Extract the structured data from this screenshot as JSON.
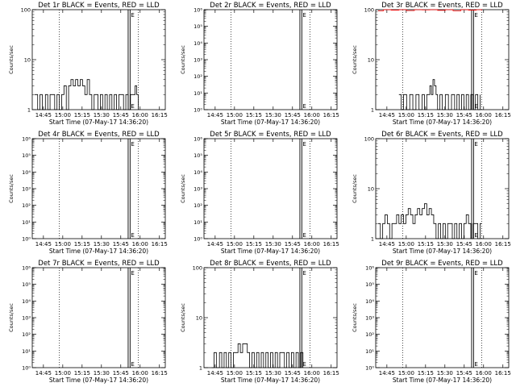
{
  "chart_data": [
    {
      "type": "line",
      "title": "Det 1r BLACK = Events, RED = LLD",
      "xlabel": "Start Time (07-May-17 14:36:20)",
      "ylabel": "Counts/sec",
      "yscale": "log",
      "ylim": [
        1,
        100
      ],
      "yticks": [
        "1",
        "10",
        "100"
      ],
      "xticks": [
        "14:45",
        "15:00",
        "15:15",
        "15:30",
        "15:45",
        "16:00",
        "16:15"
      ],
      "series": [
        {
          "color": "#000000",
          "style": "step",
          "x": [
            0.03,
            0.07,
            0.1,
            0.13,
            0.17,
            0.2,
            0.23,
            0.26,
            0.29,
            0.32,
            0.35,
            0.38,
            0.41,
            0.44,
            0.47,
            0.5,
            0.53,
            0.56,
            0.59,
            0.62,
            0.65,
            0.68,
            0.71,
            0.74,
            0.77,
            0.8,
            0.82,
            0.85,
            0.88,
            0.91,
            0.94,
            0.97,
            1.0,
            1.03,
            1.06,
            1.09,
            1.12,
            1.15,
            1.18,
            1.21,
            1.24,
            1.27,
            1.3,
            1.33,
            1.35,
            1.37
          ],
          "y": [
            2,
            1,
            2,
            1,
            2,
            1,
            2,
            2,
            1,
            2,
            1,
            2,
            3,
            1,
            3,
            4,
            3,
            4,
            3,
            4,
            3,
            2,
            4,
            2,
            1,
            2,
            2,
            1,
            2,
            1,
            2,
            1,
            2,
            1,
            2,
            1,
            2,
            2,
            1,
            2,
            1,
            2,
            2,
            3,
            2,
            1
          ]
        }
      ]
    },
    {
      "type": "line",
      "title": "Det 2r BLACK = Events, RED = LLD",
      "xlabel": "Start Time (07-May-17 14:36:20)",
      "ylabel": "Counts/sec",
      "yscale": "log",
      "ylim": [
        1,
        1000000.0
      ],
      "yticks": [
        "10⁰",
        "10¹",
        "10²",
        "10³",
        "10⁴",
        "10⁵",
        "10⁶"
      ],
      "xticks": [
        "14:45",
        "15:00",
        "15:15",
        "15:30",
        "15:45",
        "16:00",
        "16:15"
      ],
      "series": []
    },
    {
      "type": "line",
      "title": "Det 3r BLACK = Events, RED = LLD",
      "xlabel": "Start Time (07-May-17 14:36:20)",
      "ylabel": "Counts/sec",
      "yscale": "log",
      "ylim": [
        1,
        100
      ],
      "yticks": [
        "1",
        "10",
        "100"
      ],
      "xticks": [
        "14:45",
        "15:00",
        "15:15",
        "15:30",
        "15:45",
        "16:00",
        "16:15"
      ],
      "series": [
        {
          "color": "#000000",
          "style": "step",
          "x": [
            0.3,
            0.33,
            0.36,
            0.4,
            0.44,
            0.48,
            0.52,
            0.56,
            0.6,
            0.63,
            0.66,
            0.7,
            0.72,
            0.74,
            0.76,
            0.78,
            0.8,
            0.83,
            0.86,
            0.9,
            0.94,
            0.98,
            1.02,
            1.05,
            1.08,
            1.11,
            1.14,
            1.17,
            1.2,
            1.23,
            1.26,
            1.29,
            1.32,
            1.35
          ],
          "y": [
            2,
            1,
            2,
            1,
            2,
            1,
            2,
            1,
            2,
            1,
            2,
            3,
            2,
            4,
            3,
            2,
            1,
            2,
            1,
            2,
            1,
            2,
            1,
            2,
            1,
            2,
            1,
            2,
            1,
            2,
            1,
            2,
            1,
            2
          ]
        },
        {
          "color": "#ff0000",
          "style": "step",
          "x": [
            0.03,
            0.1,
            0.2,
            0.3,
            0.4,
            0.5,
            0.6,
            0.7,
            0.8,
            0.9,
            1.0,
            1.1,
            1.2,
            1.3,
            1.37
          ],
          "y": [
            95,
            100,
            98,
            100,
            96,
            100,
            99,
            100,
            97,
            100,
            95,
            100,
            98,
            100,
            97
          ]
        }
      ]
    },
    {
      "type": "line",
      "title": "Det 4r BLACK = Events, RED = LLD",
      "xlabel": "Start Time (07-May-17 14:36:20)",
      "ylabel": "Counts/sec",
      "yscale": "log",
      "ylim": [
        1,
        1000000.0
      ],
      "yticks": [
        "10⁰",
        "10¹",
        "10²",
        "10³",
        "10⁴",
        "10⁵",
        "10⁶"
      ],
      "xticks": [
        "14:45",
        "15:00",
        "15:15",
        "15:30",
        "15:45",
        "16:00",
        "16:15"
      ],
      "series": []
    },
    {
      "type": "line",
      "title": "Det 5r BLACK = Events, RED = LLD",
      "xlabel": "Start Time (07-May-17 14:36:20)",
      "ylabel": "Counts/sec",
      "yscale": "log",
      "ylim": [
        1,
        1000000.0
      ],
      "yticks": [
        "10⁰",
        "10¹",
        "10²",
        "10³",
        "10⁴",
        "10⁵",
        "10⁶"
      ],
      "xticks": [
        "14:45",
        "15:00",
        "15:15",
        "15:30",
        "15:45",
        "16:00",
        "16:15"
      ],
      "series": []
    },
    {
      "type": "line",
      "title": "Det 6r BLACK = Events, RED = LLD",
      "xlabel": "Start Time (07-May-17 14:36:20)",
      "ylabel": "Counts/sec",
      "yscale": "log",
      "ylim": [
        1,
        100
      ],
      "yticks": [
        "1",
        "10",
        "100"
      ],
      "xticks": [
        "14:45",
        "15:00",
        "15:15",
        "15:30",
        "15:45",
        "16:00",
        "16:15"
      ],
      "series": [
        {
          "color": "#000000",
          "style": "step",
          "x": [
            0.03,
            0.06,
            0.09,
            0.12,
            0.15,
            0.18,
            0.21,
            0.24,
            0.27,
            0.3,
            0.33,
            0.36,
            0.39,
            0.42,
            0.45,
            0.48,
            0.51,
            0.54,
            0.57,
            0.6,
            0.63,
            0.66,
            0.69,
            0.72,
            0.75,
            0.78,
            0.81,
            0.84,
            0.87,
            0.9,
            0.93,
            0.96,
            0.99,
            1.02,
            1.05,
            1.08,
            1.11,
            1.14,
            1.17,
            1.2,
            1.23,
            1.26,
            1.29,
            1.32,
            1.35,
            1.37
          ],
          "y": [
            2,
            1,
            2,
            3,
            2,
            1,
            2,
            2,
            3,
            2,
            3,
            2,
            3,
            4,
            3,
            2,
            3,
            4,
            3,
            4,
            5,
            3,
            4,
            3,
            2,
            1,
            2,
            1,
            2,
            1,
            2,
            2,
            1,
            2,
            1,
            2,
            1,
            2,
            3,
            2,
            1,
            2,
            2,
            1,
            2,
            2
          ]
        }
      ]
    },
    {
      "type": "line",
      "title": "Det 7r BLACK = Events, RED = LLD",
      "xlabel": "Start Time (07-May-17 14:36:20)",
      "ylabel": "Counts/sec",
      "yscale": "log",
      "ylim": [
        1,
        1000000.0
      ],
      "yticks": [
        "10⁰",
        "10¹",
        "10²",
        "10³",
        "10⁴",
        "10⁵",
        "10⁶"
      ],
      "xticks": [
        "14:45",
        "15:00",
        "15:15",
        "15:30",
        "15:45",
        "16:00",
        "16:15"
      ],
      "series": []
    },
    {
      "type": "line",
      "title": "Det 8r BLACK = Events, RED = LLD",
      "xlabel": "Start Time (07-May-17 14:36:20)",
      "ylabel": "Counts/sec",
      "yscale": "log",
      "ylim": [
        1,
        100
      ],
      "yticks": [
        "1",
        "10",
        "100"
      ],
      "xticks": [
        "14:45",
        "15:00",
        "15:15",
        "15:30",
        "15:45",
        "16:00",
        "16:15"
      ],
      "series": [
        {
          "color": "#000000",
          "style": "step",
          "x": [
            0.1,
            0.13,
            0.16,
            0.2,
            0.23,
            0.26,
            0.29,
            0.32,
            0.35,
            0.38,
            0.41,
            0.44,
            0.47,
            0.5,
            0.53,
            0.56,
            0.59,
            0.62,
            0.65,
            0.68,
            0.71,
            0.74,
            0.77,
            0.8,
            0.83,
            0.86,
            0.89,
            0.92,
            0.95,
            0.98,
            1.01,
            1.04,
            1.07,
            1.1,
            1.13,
            1.16,
            1.19,
            1.22,
            1.25,
            1.28
          ],
          "y": [
            1,
            2,
            1,
            2,
            1,
            2,
            1,
            2,
            1,
            2,
            2,
            3,
            2,
            3,
            3,
            2,
            1,
            2,
            1,
            2,
            1,
            2,
            1,
            2,
            1,
            2,
            1,
            2,
            1,
            2,
            2,
            1,
            2,
            1,
            2,
            1,
            2,
            1,
            2,
            1
          ]
        }
      ]
    },
    {
      "type": "line",
      "title": "Det 9r BLACK = Events, RED = LLD",
      "xlabel": "Start Time (07-May-17 14:36:20)",
      "ylabel": "Counts/sec",
      "yscale": "log",
      "ylim": [
        1,
        1000000.0
      ],
      "yticks": [
        "10⁰",
        "10¹",
        "10²",
        "10³",
        "10⁴",
        "10⁵",
        "10⁶"
      ],
      "xticks": [
        "14:45",
        "15:00",
        "15:15",
        "15:30",
        "15:45",
        "16:00",
        "16:15"
      ],
      "series": []
    }
  ]
}
